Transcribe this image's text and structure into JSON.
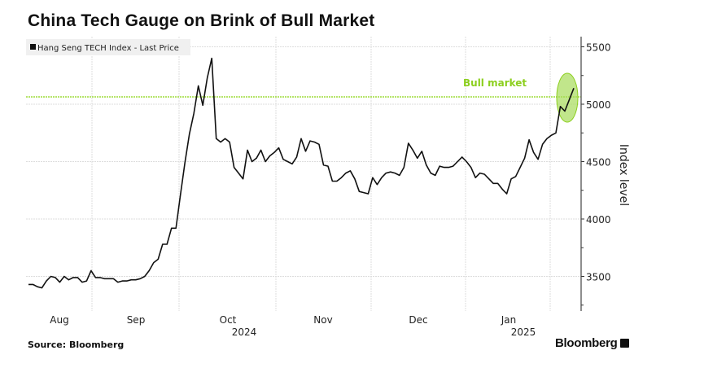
{
  "chart_data": {
    "type": "line",
    "title": "China Tech Gauge on Brink of Bull Market",
    "legend": [
      "Hang Seng TECH Index - Last Price"
    ],
    "legend_placement": "top-left",
    "ylabel": "Index level",
    "xlabel": "",
    "ylim": [
      3200,
      5560
    ],
    "yticks": [
      3500,
      4000,
      4500,
      5000,
      5500
    ],
    "xtick_labels": [
      "Aug",
      "Sep",
      "Oct",
      "Nov",
      "Dec",
      "Jan"
    ],
    "year_labels": [
      "2024",
      "2025"
    ],
    "grid": true,
    "series": [
      {
        "name": "Hang Seng TECH Index - Last Price",
        "color": "#111111",
        "values": [
          3430,
          3430,
          3410,
          3400,
          3460,
          3500,
          3490,
          3450,
          3500,
          3470,
          3490,
          3490,
          3450,
          3460,
          3550,
          3490,
          3490,
          3480,
          3480,
          3480,
          3450,
          3460,
          3460,
          3470,
          3470,
          3480,
          3500,
          3550,
          3620,
          3650,
          3780,
          3780,
          3920,
          3920,
          4210,
          4490,
          4740,
          4920,
          5160,
          4990,
          5230,
          5400,
          4700,
          4670,
          4700,
          4670,
          4450,
          4400,
          4350,
          4600,
          4500,
          4530,
          4600,
          4500,
          4550,
          4580,
          4620,
          4520,
          4500,
          4480,
          4540,
          4700,
          4590,
          4680,
          4670,
          4650,
          4470,
          4460,
          4330,
          4330,
          4360,
          4400,
          4420,
          4350,
          4240,
          4230,
          4220,
          4360,
          4300,
          4360,
          4400,
          4410,
          4400,
          4380,
          4450,
          4660,
          4600,
          4530,
          4590,
          4470,
          4400,
          4380,
          4460,
          4450,
          4450,
          4460,
          4500,
          4540,
          4500,
          4450,
          4360,
          4400,
          4390,
          4350,
          4310,
          4310,
          4260,
          4220,
          4350,
          4370,
          4450,
          4530,
          4690,
          4580,
          4520,
          4650,
          4700,
          4730,
          4750,
          4980,
          4940,
          5040,
          5140
        ]
      }
    ],
    "annotations": [
      {
        "label": "Bull market",
        "value": 5064,
        "color": "#8ccf1e"
      }
    ],
    "source": "Source: Bloomberg",
    "brand": "Bloomberg"
  }
}
